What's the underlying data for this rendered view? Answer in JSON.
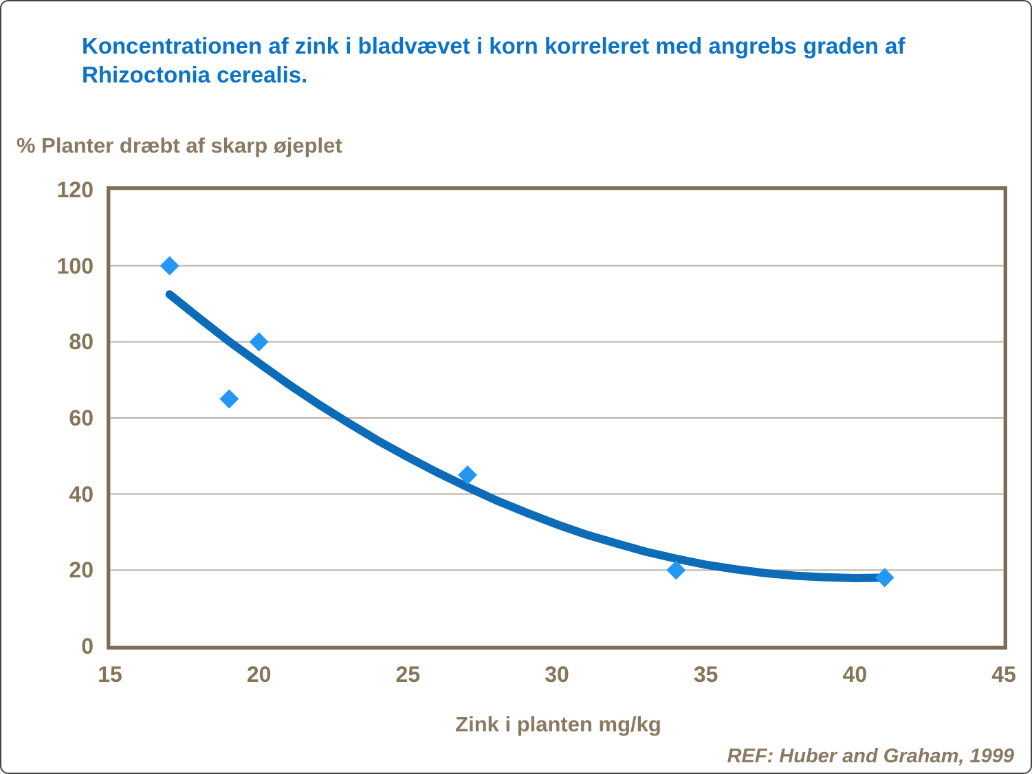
{
  "slide": {
    "title": "Koncentrationen af zink i bladvævet i korn korreleret med angrebs graden af Rhizoctonia cerealis.",
    "reference": "REF: Huber and Graham, 1999",
    "colors": {
      "title_blue": "#0d73c6",
      "axis_text_brown": "#8a7961",
      "plot_border_brown": "#7e6d56",
      "gridline": "#bcafa5",
      "trend_blue": "#0c6cb8",
      "marker_blue": "#2397f3"
    }
  },
  "chart_data": {
    "type": "scatter",
    "title": "Koncentrationen af zink i bladvævet i korn korreleret med angrebs graden af Rhizoctonia cerealis.",
    "xlabel": "Zink i planten mg/kg",
    "ylabel": "% Planter dræbt af skarp øjeplet",
    "xlim": [
      15,
      45
    ],
    "ylim": [
      0,
      120
    ],
    "x_ticks": [
      15,
      20,
      25,
      30,
      35,
      40,
      45
    ],
    "y_ticks": [
      0,
      20,
      40,
      60,
      80,
      100,
      120
    ],
    "grid": "horizontal",
    "legend": "none",
    "source": "REF: Huber and Graham, 1999",
    "series": [
      {
        "name": "observations",
        "type": "scatter",
        "marker": "diamond",
        "color": "#2397f3",
        "points": [
          [
            17,
            100
          ],
          [
            19,
            65
          ],
          [
            20,
            80
          ],
          [
            27,
            45
          ],
          [
            34,
            20
          ],
          [
            41,
            18
          ]
        ]
      },
      {
        "name": "trend-polynomial-fit",
        "type": "line",
        "color": "#0c6cb8",
        "stroke_width": 12,
        "points": [
          [
            17,
            92.5
          ],
          [
            18,
            86.2
          ],
          [
            19,
            80.1
          ],
          [
            20,
            74.4
          ],
          [
            21,
            68.8
          ],
          [
            22,
            63.6
          ],
          [
            23,
            58.7
          ],
          [
            24,
            54.0
          ],
          [
            25,
            49.7
          ],
          [
            26,
            45.6
          ],
          [
            27,
            41.8
          ],
          [
            28,
            38.2
          ],
          [
            29,
            35.0
          ],
          [
            30,
            32.0
          ],
          [
            31,
            29.3
          ],
          [
            32,
            27.0
          ],
          [
            33,
            24.8
          ],
          [
            34,
            23.0
          ],
          [
            35,
            21.4
          ],
          [
            36,
            20.2
          ],
          [
            37,
            19.2
          ],
          [
            38,
            18.5
          ],
          [
            39,
            18.1
          ],
          [
            40,
            17.9
          ],
          [
            41,
            18.0
          ]
        ]
      }
    ]
  }
}
